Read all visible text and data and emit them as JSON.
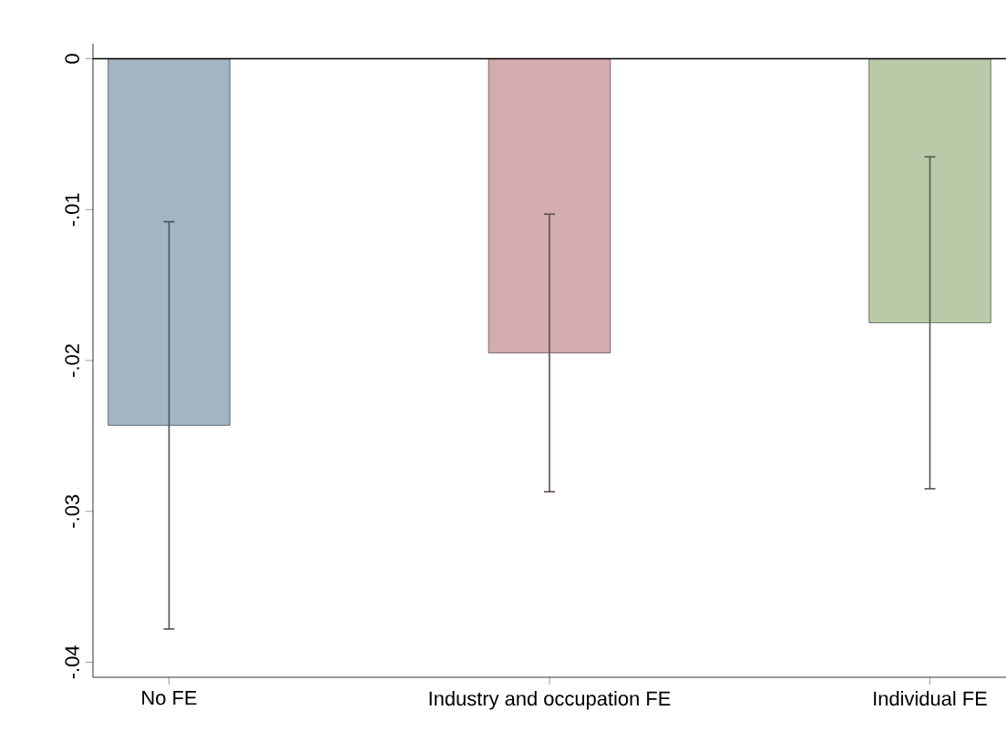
{
  "chart_data": {
    "type": "bar",
    "categories": [
      "No FE",
      "Industry and occupation FE",
      "Individual FE"
    ],
    "values": [
      -0.0243,
      -0.0195,
      -0.0175
    ],
    "errors": [
      0.0135,
      0.0092,
      0.011
    ],
    "colors": [
      "#a3b4c5",
      "#d3acb0",
      "#bbc9a8"
    ],
    "ylim": [
      -0.041,
      0.001
    ],
    "yticks": [
      {
        "value": -0.04,
        "label": "-.04"
      },
      {
        "value": -0.03,
        "label": "-.03"
      },
      {
        "value": -0.02,
        "label": "-.02"
      },
      {
        "value": -0.01,
        "label": "-.01"
      },
      0
    ],
    "ref_lines": [
      {
        "axis": "y",
        "value": 0,
        "color": "#000000"
      }
    ],
    "grid": false
  }
}
